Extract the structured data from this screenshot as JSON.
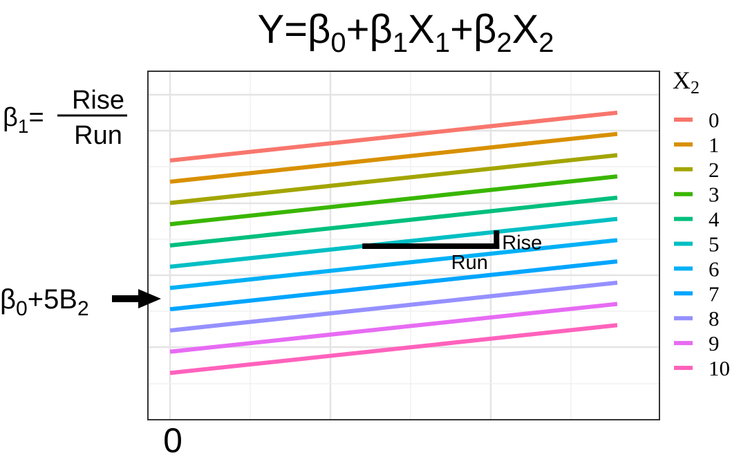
{
  "chart_data": {
    "type": "line",
    "title": {
      "main": "Y=β",
      "s0": "0",
      "p1": "+β",
      "s1": "1",
      "x1": "X",
      "s1b": "1",
      "p2": "+β",
      "s2": "2",
      "x2": "X",
      "s2b": "2"
    },
    "x_tick_label": "0",
    "x_range": [
      0,
      10
    ],
    "grid": true,
    "legend": {
      "title_main": "X",
      "title_sub": "2",
      "placement": "right",
      "entries": [
        "0",
        "1",
        "2",
        "3",
        "4",
        "5",
        "6",
        "7",
        "8",
        "9",
        "10"
      ]
    },
    "colors": [
      "#F8766D",
      "#D89000",
      "#A3A500",
      "#39B600",
      "#00BF7D",
      "#00BFC4",
      "#00B0F6",
      "#00A5FF",
      "#9590FF",
      "#E76BF3",
      "#FF62BC"
    ],
    "intercept": 10,
    "slope": 0.225,
    "step_per_x2": -1,
    "series_x": [
      0,
      10
    ],
    "beta1_annotation": {
      "label": "β",
      "sub": "1",
      "eq": "=",
      "numerator": "Rise",
      "denominator": "Run"
    },
    "intercept_annotation": {
      "b": "β",
      "sub0": "0",
      "mid": "+5B",
      "sub2": "2"
    },
    "slope_triangle": {
      "run_label": "Run",
      "rise_label": "Rise",
      "x_start": 4.3,
      "x_end": 7.3,
      "series_index": 5
    }
  }
}
